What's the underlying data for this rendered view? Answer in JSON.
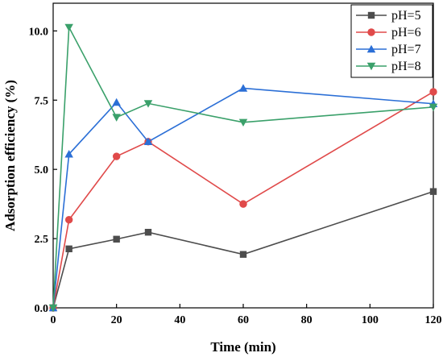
{
  "chart_data": {
    "type": "line",
    "xlabel": "Time (min)",
    "ylabel": "Adsorption efficiency (%)",
    "xlim": [
      0,
      120
    ],
    "ylim": [
      0,
      11.0
    ],
    "x_ticks": [
      0,
      20,
      40,
      60,
      80,
      100,
      120
    ],
    "y_ticks": [
      0.0,
      2.5,
      5.0,
      7.5,
      10.0
    ],
    "y_tick_labels": [
      "0.0",
      "2.5",
      "5.0",
      "7.5",
      "10.0"
    ],
    "grid": false,
    "legend_position": "top-right",
    "x": [
      0,
      5,
      20,
      30,
      60,
      120
    ],
    "series": [
      {
        "name": "pH=5",
        "color": "#4d4d4d",
        "marker": "square",
        "values": [
          0,
          2.13,
          2.48,
          2.73,
          1.93,
          4.2
        ]
      },
      {
        "name": "pH=6",
        "color": "#e04a4a",
        "marker": "circle",
        "values": [
          0,
          3.18,
          5.47,
          6.0,
          3.75,
          7.8
        ]
      },
      {
        "name": "pH=7",
        "color": "#2b6fd6",
        "marker": "triangle-up",
        "values": [
          0,
          5.55,
          7.42,
          6.0,
          7.93,
          7.37
        ]
      },
      {
        "name": "pH=8",
        "color": "#3aa06a",
        "marker": "triangle-down",
        "values": [
          0,
          10.13,
          6.88,
          7.38,
          6.7,
          7.25
        ]
      }
    ]
  }
}
